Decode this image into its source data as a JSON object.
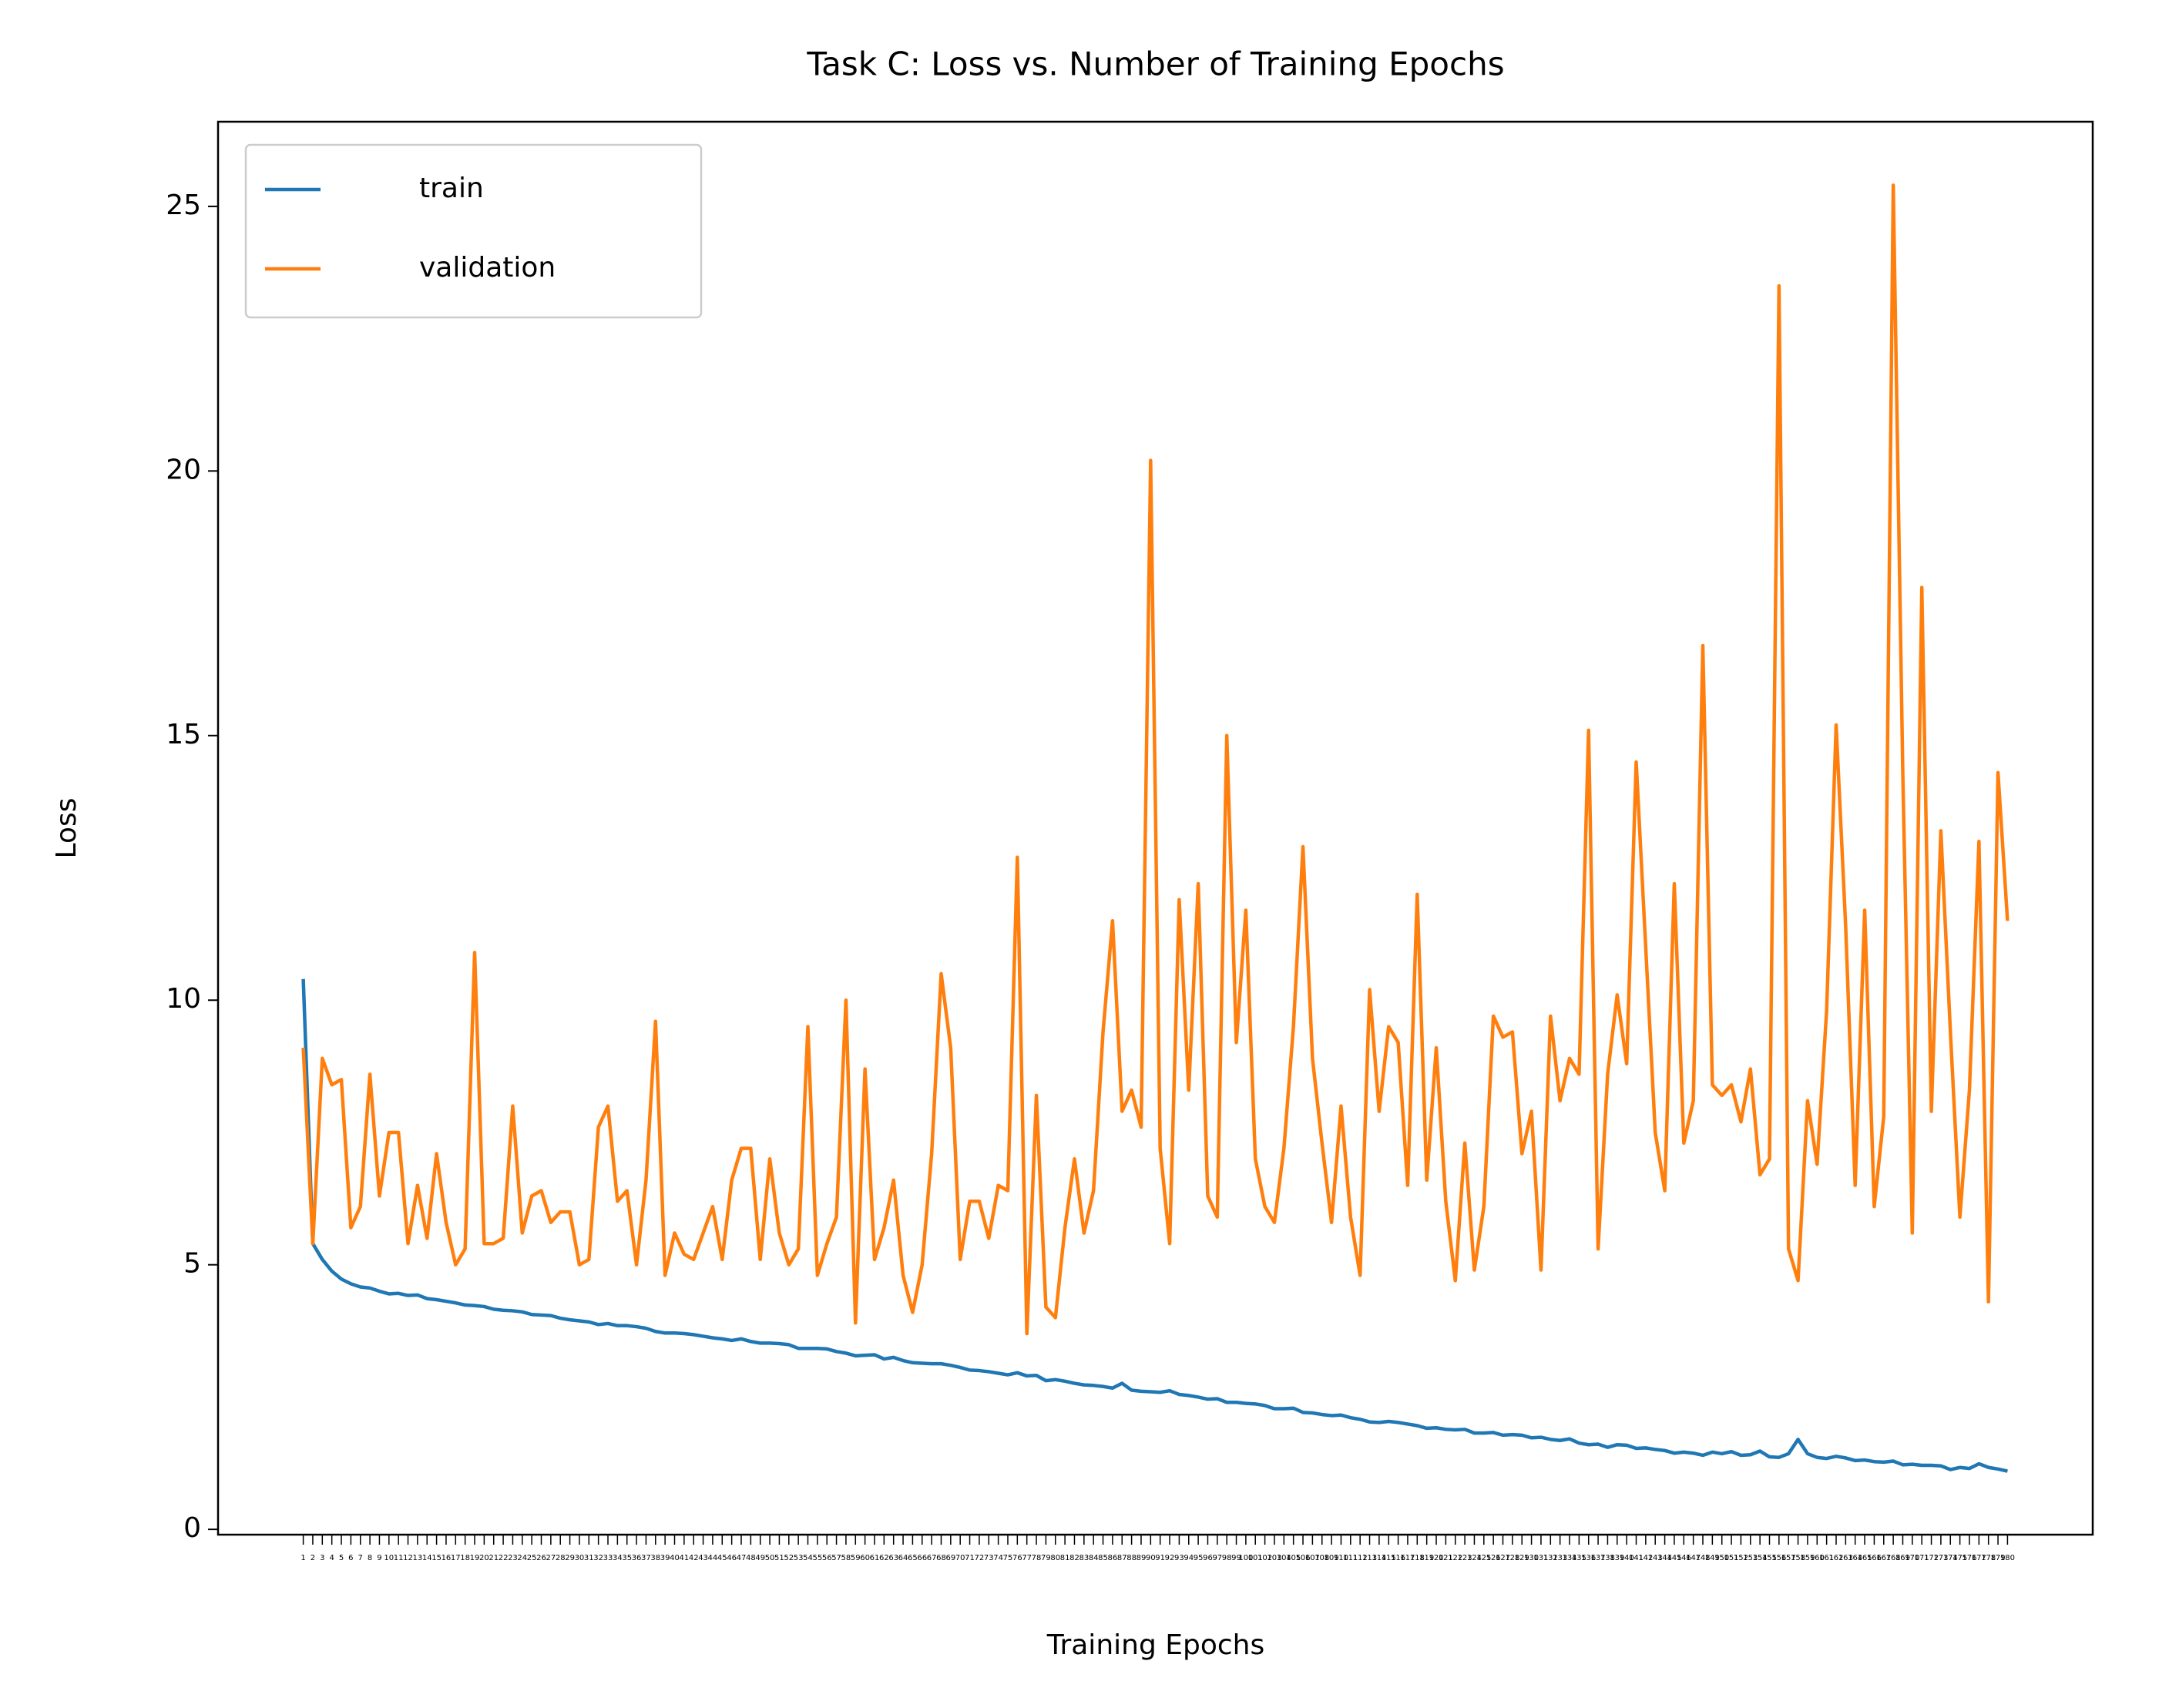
{
  "chart_data": {
    "type": "line",
    "title": "Task C: Loss vs. Number of Training Epochs",
    "xlabel": "Training Epochs",
    "ylabel": "Loss",
    "x": [
      1,
      2,
      3,
      4,
      5,
      6,
      7,
      8,
      9,
      10,
      11,
      12,
      13,
      14,
      15,
      16,
      17,
      18,
      19,
      20,
      21,
      22,
      23,
      24,
      25,
      26,
      27,
      28,
      29,
      30,
      31,
      32,
      33,
      34,
      35,
      36,
      37,
      38,
      39,
      40,
      41,
      42,
      43,
      44,
      45,
      46,
      47,
      48,
      49,
      50,
      51,
      52,
      53,
      54,
      55,
      56,
      57,
      58,
      59,
      60,
      61,
      62,
      63,
      64,
      65,
      66,
      67,
      68,
      69,
      70,
      71,
      72,
      73,
      74,
      75,
      76,
      77,
      78,
      79,
      80,
      81,
      82,
      83,
      84,
      85,
      86,
      87,
      88,
      89,
      90,
      91,
      92,
      93,
      94,
      95,
      96,
      97,
      98,
      99,
      100,
      101,
      102,
      103,
      104,
      105,
      106,
      107,
      108,
      109,
      110,
      111,
      112,
      113,
      114,
      115,
      116,
      117,
      118,
      119,
      120,
      121,
      122,
      123,
      124,
      125,
      126,
      127,
      128,
      129,
      130,
      131,
      132,
      133,
      134,
      135,
      136,
      137,
      138,
      139,
      140,
      141,
      142,
      143,
      144,
      145,
      146,
      147,
      148,
      149,
      150,
      151,
      152,
      153,
      154,
      155,
      156,
      157,
      158,
      159,
      160,
      161,
      162,
      163,
      164,
      165,
      166,
      167,
      168,
      169,
      170,
      171,
      172,
      173,
      174,
      175,
      176,
      177,
      178,
      179,
      180
    ],
    "series": [
      {
        "name": "train",
        "color": "#1f77b4",
        "values": [
          10.4,
          5.4,
          5.1,
          4.88,
          4.73,
          4.64,
          4.58,
          4.56,
          4.5,
          4.45,
          4.46,
          4.42,
          4.43,
          4.36,
          4.34,
          4.31,
          4.28,
          4.24,
          4.23,
          4.21,
          4.16,
          4.14,
          4.13,
          4.11,
          4.06,
          4.05,
          4.04,
          3.99,
          3.96,
          3.94,
          3.92,
          3.87,
          3.89,
          3.85,
          3.85,
          3.83,
          3.8,
          3.74,
          3.71,
          3.71,
          3.7,
          3.68,
          3.65,
          3.62,
          3.6,
          3.57,
          3.6,
          3.55,
          3.52,
          3.52,
          3.51,
          3.49,
          3.42,
          3.42,
          3.42,
          3.41,
          3.36,
          3.33,
          3.28,
          3.29,
          3.3,
          3.22,
          3.25,
          3.19,
          3.15,
          3.14,
          3.13,
          3.13,
          3.1,
          3.06,
          3.01,
          3.0,
          2.98,
          2.95,
          2.92,
          2.96,
          2.9,
          2.91,
          2.81,
          2.83,
          2.8,
          2.76,
          2.73,
          2.72,
          2.7,
          2.67,
          2.76,
          2.63,
          2.61,
          2.6,
          2.59,
          2.62,
          2.55,
          2.53,
          2.5,
          2.46,
          2.47,
          2.4,
          2.4,
          2.38,
          2.37,
          2.34,
          2.28,
          2.28,
          2.29,
          2.21,
          2.2,
          2.17,
          2.15,
          2.16,
          2.11,
          2.08,
          2.03,
          2.02,
          2.04,
          2.02,
          1.99,
          1.96,
          1.91,
          1.92,
          1.89,
          1.88,
          1.89,
          1.82,
          1.82,
          1.83,
          1.78,
          1.79,
          1.78,
          1.73,
          1.74,
          1.7,
          1.68,
          1.71,
          1.63,
          1.6,
          1.61,
          1.55,
          1.6,
          1.59,
          1.53,
          1.54,
          1.51,
          1.49,
          1.44,
          1.46,
          1.44,
          1.4,
          1.46,
          1.43,
          1.47,
          1.4,
          1.41,
          1.48,
          1.37,
          1.36,
          1.43,
          1.7,
          1.43,
          1.36,
          1.34,
          1.38,
          1.35,
          1.3,
          1.31,
          1.28,
          1.27,
          1.29,
          1.22,
          1.23,
          1.21,
          1.21,
          1.2,
          1.13,
          1.17,
          1.15,
          1.24,
          1.17,
          1.14,
          1.1
        ]
      },
      {
        "name": "validation",
        "color": "#ff7f0e",
        "values": [
          9.1,
          5.4,
          8.9,
          8.4,
          8.5,
          5.7,
          6.1,
          8.6,
          6.3,
          7.5,
          7.5,
          5.4,
          6.5,
          5.5,
          7.1,
          5.8,
          5.0,
          5.3,
          10.9,
          5.4,
          5.4,
          5.5,
          8.0,
          5.6,
          6.3,
          6.4,
          5.8,
          6.0,
          6.0,
          5.0,
          5.1,
          7.6,
          8.0,
          6.2,
          6.4,
          5.0,
          6.6,
          9.6,
          4.8,
          5.6,
          5.2,
          5.1,
          5.6,
          6.1,
          5.1,
          6.6,
          7.2,
          7.2,
          5.1,
          7.0,
          5.6,
          5.0,
          5.3,
          9.5,
          4.8,
          5.4,
          5.9,
          10.0,
          3.9,
          8.7,
          5.1,
          5.7,
          6.6,
          4.8,
          4.1,
          5.0,
          7.1,
          10.5,
          9.1,
          5.1,
          6.2,
          6.2,
          5.5,
          6.5,
          6.4,
          12.7,
          3.7,
          8.2,
          4.2,
          4.0,
          5.7,
          7.0,
          5.6,
          6.4,
          9.4,
          11.5,
          7.9,
          8.3,
          7.6,
          20.2,
          7.2,
          5.4,
          11.9,
          8.3,
          12.2,
          6.3,
          5.9,
          15.0,
          9.2,
          11.7,
          7.0,
          6.1,
          5.8,
          7.2,
          9.5,
          12.9,
          8.9,
          7.3,
          5.8,
          8.0,
          5.9,
          4.8,
          10.2,
          7.9,
          9.5,
          9.2,
          6.5,
          12.0,
          6.6,
          9.1,
          6.2,
          4.7,
          7.3,
          4.9,
          6.1,
          9.7,
          9.3,
          9.4,
          7.1,
          7.9,
          4.9,
          9.7,
          8.1,
          8.9,
          8.6,
          15.1,
          5.3,
          8.6,
          10.1,
          8.8,
          14.5,
          11.0,
          7.5,
          6.4,
          12.2,
          7.3,
          8.1,
          16.7,
          8.4,
          8.2,
          8.4,
          7.7,
          8.7,
          6.7,
          7.0,
          23.5,
          5.3,
          4.7,
          8.1,
          6.9,
          9.8,
          15.2,
          11.4,
          6.5,
          11.7,
          6.1,
          7.8,
          25.4,
          14.3,
          5.6,
          17.8,
          7.9,
          13.2,
          9.4,
          5.9,
          8.3,
          13.0,
          4.3,
          14.3,
          11.5
        ]
      }
    ],
    "xlim": [
      -7.95,
      188.95
    ],
    "ylim": [
      -0.1,
      26.6
    ],
    "yticks": [
      0,
      5,
      10,
      15,
      20,
      25
    ],
    "legend": "upper left",
    "grid": false
  }
}
